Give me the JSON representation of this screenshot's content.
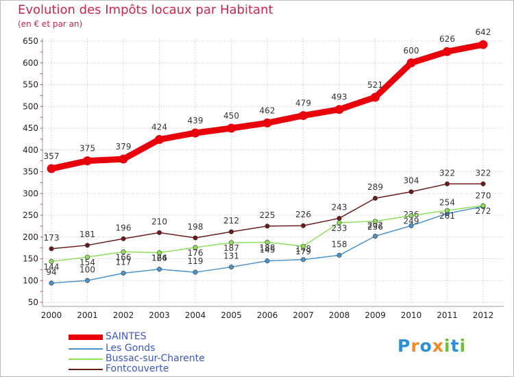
{
  "title": "Evolution des Impôts locaux par Habitant",
  "subtitle": "(en € et par an)",
  "logo_letters": [
    {
      "ch": "P",
      "color": "#2f8fd6"
    },
    {
      "ch": "r",
      "color": "#f08a24"
    },
    {
      "ch": "o",
      "color": "#2f8fd6"
    },
    {
      "ch": "x",
      "color": "#f08a24"
    },
    {
      "ch": "i",
      "color": "#6abf3b"
    },
    {
      "ch": "t",
      "color": "#2f8fd6"
    },
    {
      "ch": "i",
      "color": "#6abf3b"
    }
  ],
  "chart_data": {
    "type": "line",
    "title": "Evolution des Impôts locaux par Habitant",
    "subtitle": "(en € et par an)",
    "categories": [
      "2000",
      "2001",
      "2002",
      "2003",
      "2004",
      "2005",
      "2006",
      "2007",
      "2008",
      "2009",
      "2010",
      "2011",
      "2012"
    ],
    "ylim": [
      50,
      650
    ],
    "yticks": [
      50,
      100,
      150,
      200,
      250,
      300,
      350,
      400,
      450,
      500,
      550,
      600,
      650
    ],
    "grid": true,
    "legend_position": "bottom-left",
    "series": [
      {
        "name": "SAINTES",
        "color": "#e8000b",
        "values": [
          357,
          375,
          379,
          424,
          439,
          450,
          462,
          479,
          493,
          521,
          600,
          626,
          642
        ]
      },
      {
        "name": "Les Gonds",
        "color": "#4a93cc",
        "values": [
          94,
          100,
          117,
          126,
          119,
          131,
          145,
          148,
          158,
          202,
          226,
          254,
          270
        ]
      },
      {
        "name": "Bussac-sur-Charente",
        "color": "#8ee05a",
        "values": [
          144,
          154,
          166,
          164,
          176,
          187,
          188,
          179,
          233,
          236,
          249,
          261,
          272
        ]
      },
      {
        "name": "Fontcouverte",
        "color": "#6b1a1a",
        "values": [
          173,
          181,
          196,
          210,
          198,
          212,
          225,
          226,
          243,
          289,
          304,
          322,
          322
        ]
      }
    ]
  }
}
